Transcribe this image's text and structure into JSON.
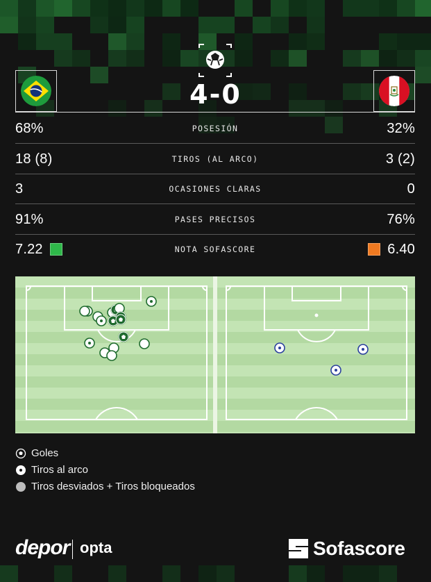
{
  "match": {
    "home_team": "Brazil",
    "away_team": "Peru",
    "score": "4-0"
  },
  "stats": [
    {
      "label": "POSESIÓN",
      "home": "68%",
      "away": "32%"
    },
    {
      "label": "TIROS (AL ARCO)",
      "home": "18 (8)",
      "away": "3 (2)"
    },
    {
      "label": "OCASIONES CLARAS",
      "home": "3",
      "away": "0"
    },
    {
      "label": "PASES PRECISOS",
      "home": "91%",
      "away": "76%"
    },
    {
      "label": "NOTA SOFASCORE",
      "home": "7.22",
      "away": "6.40",
      "home_color": "#2fb84a",
      "away_color": "#f07a21"
    }
  ],
  "legend": {
    "goals": "Goles",
    "on_target": "Tiros al arco",
    "off_target": "Tiros desviados + Tiros bloqueados"
  },
  "footer": {
    "brand1": "depor",
    "brand2": "opta",
    "brand3": "Sofascore"
  },
  "colors": {
    "background": "#141414",
    "pitch_light": "#c3e4b4",
    "pitch_dark": "#b3d9a2",
    "home_shot": "#1f6b2e",
    "away_shot": "#2a3f9e"
  }
}
